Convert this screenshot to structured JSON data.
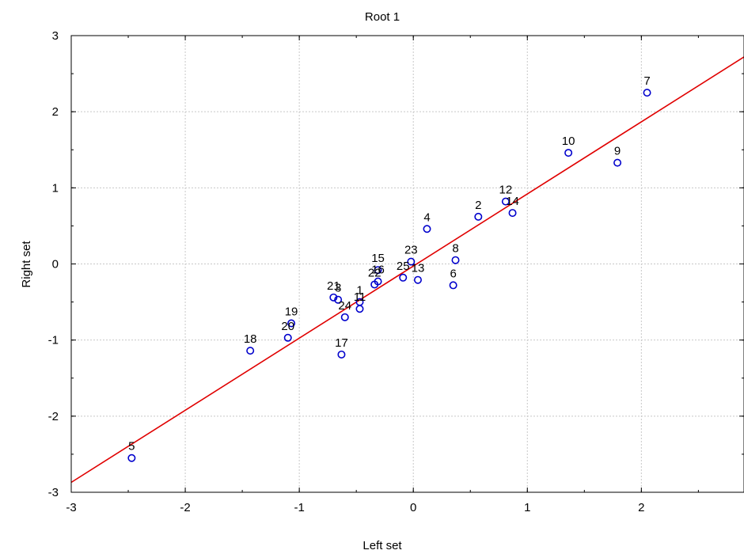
{
  "chart_data": {
    "type": "scatter",
    "title": "Root 1",
    "xlabel": "Left set",
    "ylabel": "Right set",
    "xlim": [
      -3,
      2.9
    ],
    "ylim": [
      -3,
      3
    ],
    "xticks": [
      "-3",
      "-2",
      "-1",
      "0",
      "1",
      "2"
    ],
    "yticks": [
      "-3",
      "-2",
      "-1",
      "0",
      "1",
      "2",
      "3"
    ],
    "grid": true,
    "colors": {
      "points": "#0000cc",
      "fit_line": "#e00000",
      "grid": "#c8c8c8"
    },
    "points": [
      {
        "label": "1",
        "x": -0.47,
        "y": -0.5
      },
      {
        "label": "2",
        "x": 0.57,
        "y": 0.62
      },
      {
        "label": "3",
        "x": -0.66,
        "y": -0.47
      },
      {
        "label": "4",
        "x": 0.12,
        "y": 0.46
      },
      {
        "label": "5",
        "x": -2.47,
        "y": -2.55
      },
      {
        "label": "6",
        "x": 0.35,
        "y": -0.28
      },
      {
        "label": "7",
        "x": 2.05,
        "y": 2.25
      },
      {
        "label": "8",
        "x": 0.37,
        "y": 0.05
      },
      {
        "label": "9",
        "x": 1.79,
        "y": 1.33
      },
      {
        "label": "10",
        "x": 1.36,
        "y": 1.46
      },
      {
        "label": "11",
        "x": -0.47,
        "y": -0.59
      },
      {
        "label": "12",
        "x": 0.81,
        "y": 0.82
      },
      {
        "label": "13",
        "x": 0.04,
        "y": -0.21
      },
      {
        "label": "14",
        "x": 0.87,
        "y": 0.67
      },
      {
        "label": "15",
        "x": -0.31,
        "y": -0.08
      },
      {
        "label": "16",
        "x": -0.31,
        "y": -0.23
      },
      {
        "label": "17",
        "x": -0.63,
        "y": -1.19
      },
      {
        "label": "18",
        "x": -1.43,
        "y": -1.14
      },
      {
        "label": "19",
        "x": -1.07,
        "y": -0.78
      },
      {
        "label": "20",
        "x": -1.1,
        "y": -0.97
      },
      {
        "label": "21",
        "x": -0.7,
        "y": -0.44
      },
      {
        "label": "22",
        "x": -0.34,
        "y": -0.27
      },
      {
        "label": "23",
        "x": -0.02,
        "y": 0.03
      },
      {
        "label": "24",
        "x": -0.6,
        "y": -0.7
      },
      {
        "label": "25",
        "x": -0.09,
        "y": -0.18
      }
    ],
    "fit_line": {
      "x": [
        -3,
        2.9
      ],
      "y": [
        -2.87,
        2.72
      ]
    }
  }
}
